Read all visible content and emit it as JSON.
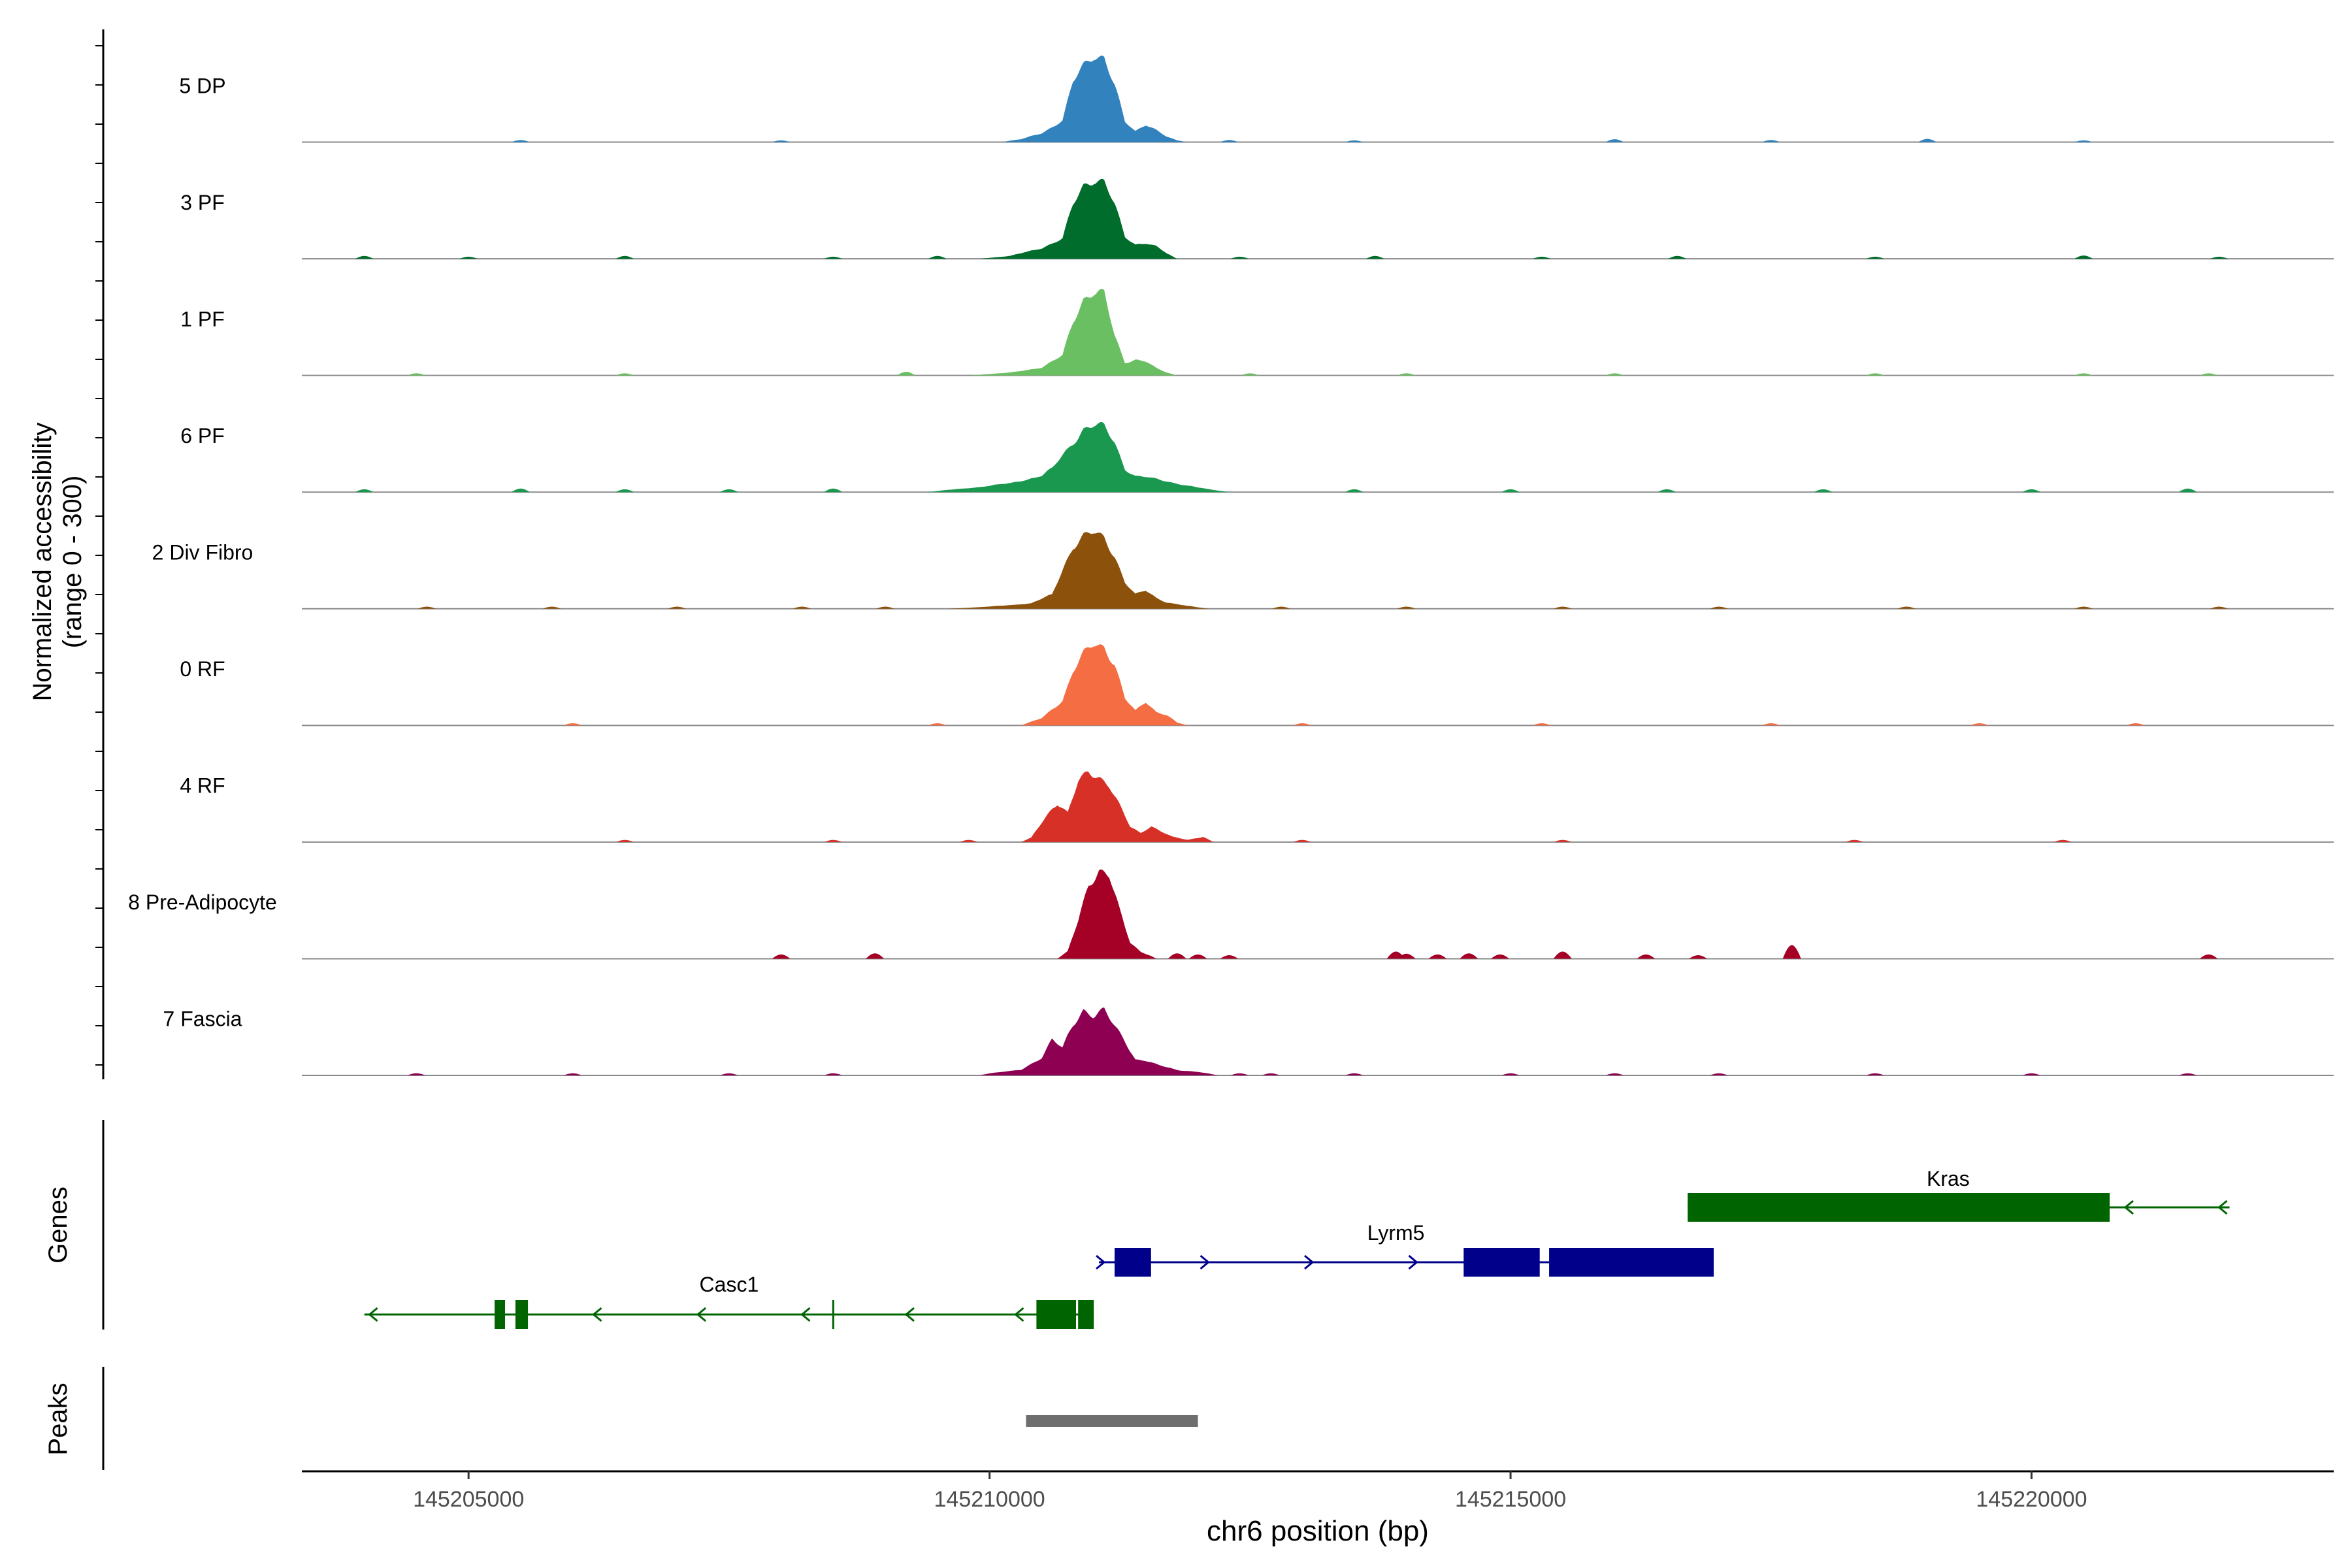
{
  "chart_data": {
    "type": "area",
    "title": "",
    "ylabel_line1": "Normalized accessibility",
    "ylabel_line2": "(range 0 - 300)",
    "xlabel": "chr6 position (bp)",
    "xlim": [
      145203400,
      145222900
    ],
    "ylim": [
      0,
      300
    ],
    "x_ticks": [
      145205000,
      145210000,
      145215000,
      145220000
    ],
    "x_tick_labels": [
      "145205000",
      "145210000",
      "145215000",
      "145220000"
    ],
    "series": [
      {
        "name": "5 DP",
        "color": "#3182BD",
        "points": [
          [
            145210100,
            0
          ],
          [
            145210300,
            8
          ],
          [
            145210500,
            25
          ],
          [
            145210700,
            60
          ],
          [
            145210800,
            165
          ],
          [
            145210900,
            210
          ],
          [
            145211000,
            245
          ],
          [
            145211100,
            240
          ],
          [
            145211200,
            160
          ],
          [
            145211300,
            55
          ],
          [
            145211400,
            30
          ],
          [
            145211500,
            50
          ],
          [
            145211600,
            35
          ],
          [
            145211700,
            15
          ],
          [
            145211800,
            5
          ],
          [
            145211900,
            0
          ]
        ],
        "noise": [
          [
            145205500,
            6
          ],
          [
            145208000,
            5
          ],
          [
            145212300,
            6
          ],
          [
            145213500,
            5
          ],
          [
            145216000,
            8
          ],
          [
            145217500,
            6
          ],
          [
            145219000,
            9
          ],
          [
            145220500,
            5
          ]
        ]
      },
      {
        "name": "3 PF",
        "color": "#006D2C",
        "points": [
          [
            145209900,
            0
          ],
          [
            145210200,
            8
          ],
          [
            145210500,
            30
          ],
          [
            145210700,
            55
          ],
          [
            145210800,
            150
          ],
          [
            145210900,
            205
          ],
          [
            145211000,
            225
          ],
          [
            145211100,
            215
          ],
          [
            145211200,
            150
          ],
          [
            145211300,
            60
          ],
          [
            145211400,
            40
          ],
          [
            145211500,
            45
          ],
          [
            145211600,
            35
          ],
          [
            145211700,
            15
          ],
          [
            145211800,
            0
          ]
        ],
        "noise": [
          [
            145204000,
            8
          ],
          [
            145205000,
            6
          ],
          [
            145206500,
            8
          ],
          [
            145208500,
            6
          ],
          [
            145209500,
            8
          ],
          [
            145212400,
            6
          ],
          [
            145213700,
            8
          ],
          [
            145215300,
            6
          ],
          [
            145216600,
            8
          ],
          [
            145218500,
            6
          ],
          [
            145220500,
            9
          ],
          [
            145221800,
            6
          ]
        ]
      },
      {
        "name": "1 PF",
        "color": "#6ABF62",
        "points": [
          [
            145209800,
            0
          ],
          [
            145210200,
            8
          ],
          [
            145210500,
            22
          ],
          [
            145210700,
            55
          ],
          [
            145210800,
            150
          ],
          [
            145210900,
            215
          ],
          [
            145211000,
            235
          ],
          [
            145211100,
            225
          ],
          [
            145211200,
            110
          ],
          [
            145211300,
            35
          ],
          [
            145211400,
            45
          ],
          [
            145211500,
            40
          ],
          [
            145211600,
            20
          ],
          [
            145211700,
            8
          ],
          [
            145211800,
            0
          ]
        ],
        "noise": [
          [
            145204500,
            6
          ],
          [
            145206500,
            6
          ],
          [
            145209200,
            10
          ],
          [
            145212500,
            6
          ],
          [
            145214000,
            6
          ],
          [
            145216000,
            6
          ],
          [
            145218500,
            6
          ],
          [
            145220500,
            6
          ],
          [
            145221700,
            6
          ]
        ]
      },
      {
        "name": "6 PF",
        "color": "#1A9850",
        "points": [
          [
            145209400,
            0
          ],
          [
            145209600,
            6
          ],
          [
            145209900,
            14
          ],
          [
            145210200,
            25
          ],
          [
            145210500,
            45
          ],
          [
            145210600,
            65
          ],
          [
            145210800,
            140
          ],
          [
            145210900,
            175
          ],
          [
            145211000,
            185
          ],
          [
            145211100,
            180
          ],
          [
            145211200,
            140
          ],
          [
            145211300,
            65
          ],
          [
            145211400,
            45
          ],
          [
            145211500,
            42
          ],
          [
            145211700,
            30
          ],
          [
            145211900,
            18
          ],
          [
            145212100,
            8
          ],
          [
            145212300,
            0
          ]
        ],
        "noise": [
          [
            145204000,
            8
          ],
          [
            145205500,
            10
          ],
          [
            145206500,
            8
          ],
          [
            145207500,
            8
          ],
          [
            145208500,
            10
          ],
          [
            145213500,
            8
          ],
          [
            145215000,
            8
          ],
          [
            145216500,
            8
          ],
          [
            145218000,
            8
          ],
          [
            145220000,
            8
          ],
          [
            145221500,
            10
          ]
        ]
      },
      {
        "name": "2 Div Fibro",
        "color": "#8C510A",
        "points": [
          [
            145209600,
            0
          ],
          [
            145210000,
            6
          ],
          [
            145210400,
            15
          ],
          [
            145210600,
            40
          ],
          [
            145210700,
            110
          ],
          [
            145210800,
            175
          ],
          [
            145210900,
            200
          ],
          [
            145211000,
            210
          ],
          [
            145211100,
            195
          ],
          [
            145211200,
            150
          ],
          [
            145211300,
            75
          ],
          [
            145211400,
            40
          ],
          [
            145211500,
            50
          ],
          [
            145211600,
            30
          ],
          [
            145211700,
            18
          ],
          [
            145211900,
            8
          ],
          [
            145212100,
            0
          ]
        ],
        "noise": [
          [
            145204600,
            6
          ],
          [
            145205800,
            6
          ],
          [
            145207000,
            6
          ],
          [
            145208200,
            6
          ],
          [
            145209000,
            6
          ],
          [
            145212800,
            6
          ],
          [
            145214000,
            6
          ],
          [
            145215500,
            6
          ],
          [
            145217000,
            6
          ],
          [
            145218800,
            6
          ],
          [
            145220500,
            6
          ],
          [
            145221800,
            6
          ]
        ]
      },
      {
        "name": "0 RF",
        "color": "#F46D43",
        "points": [
          [
            145210300,
            0
          ],
          [
            145210500,
            20
          ],
          [
            145210700,
            70
          ],
          [
            145210800,
            150
          ],
          [
            145210900,
            195
          ],
          [
            145211000,
            225
          ],
          [
            145211100,
            220
          ],
          [
            145211200,
            175
          ],
          [
            145211300,
            75
          ],
          [
            145211400,
            40
          ],
          [
            145211500,
            65
          ],
          [
            145211600,
            38
          ],
          [
            145211700,
            30
          ],
          [
            145211800,
            8
          ],
          [
            145211900,
            0
          ]
        ],
        "noise": [
          [
            145206000,
            6
          ],
          [
            145209500,
            6
          ],
          [
            145213000,
            6
          ],
          [
            145215300,
            6
          ],
          [
            145217500,
            6
          ],
          [
            145219500,
            6
          ],
          [
            145221000,
            6
          ]
        ]
      },
      {
        "name": "4 RF",
        "color": "#D73027",
        "points": [
          [
            145210300,
            0
          ],
          [
            145210400,
            12
          ],
          [
            145210500,
            55
          ],
          [
            145210600,
            95
          ],
          [
            145210650,
            110
          ],
          [
            145210750,
            80
          ],
          [
            145210850,
            165
          ],
          [
            145210950,
            195
          ],
          [
            145211050,
            185
          ],
          [
            145211150,
            160
          ],
          [
            145211250,
            100
          ],
          [
            145211350,
            42
          ],
          [
            145211450,
            25
          ],
          [
            145211550,
            45
          ],
          [
            145211650,
            30
          ],
          [
            145211750,
            15
          ],
          [
            145211900,
            6
          ],
          [
            145212050,
            15
          ],
          [
            145212150,
            0
          ]
        ],
        "noise": [
          [
            145206500,
            6
          ],
          [
            145208500,
            6
          ],
          [
            145209800,
            6
          ],
          [
            145213000,
            6
          ],
          [
            145215500,
            6
          ],
          [
            145218300,
            6
          ],
          [
            145220300,
            6
          ]
        ]
      },
      {
        "name": "8 Pre-Adipocyte",
        "color": "#A50026",
        "points": [
          [
            145210650,
            0
          ],
          [
            145210750,
            20
          ],
          [
            145210850,
            105
          ],
          [
            145210950,
            210
          ],
          [
            145211050,
            250
          ],
          [
            145211150,
            230
          ],
          [
            145211250,
            130
          ],
          [
            145211350,
            45
          ],
          [
            145211450,
            20
          ],
          [
            145211550,
            8
          ],
          [
            145211600,
            0
          ]
        ],
        "noise": [
          [
            145208000,
            12
          ],
          [
            145208900,
            15
          ],
          [
            145211800,
            15
          ],
          [
            145212000,
            12
          ],
          [
            145212300,
            10
          ],
          [
            145213900,
            20
          ],
          [
            145214000,
            14
          ],
          [
            145214300,
            12
          ],
          [
            145214600,
            15
          ],
          [
            145214900,
            12
          ],
          [
            145215500,
            20
          ],
          [
            145216300,
            12
          ],
          [
            145216800,
            10
          ],
          [
            145217700,
            38
          ],
          [
            145221700,
            12
          ]
        ]
      },
      {
        "name": "7 Fascia",
        "color": "#8E0152",
        "points": [
          [
            145209900,
            0
          ],
          [
            145210000,
            6
          ],
          [
            145210300,
            15
          ],
          [
            145210500,
            50
          ],
          [
            145210600,
            100
          ],
          [
            145210700,
            75
          ],
          [
            145210800,
            140
          ],
          [
            145210900,
            185
          ],
          [
            145211000,
            170
          ],
          [
            145211100,
            180
          ],
          [
            145211200,
            135
          ],
          [
            145211300,
            95
          ],
          [
            145211400,
            45
          ],
          [
            145211500,
            42
          ],
          [
            145211600,
            30
          ],
          [
            145211800,
            15
          ],
          [
            145212000,
            10
          ],
          [
            145212200,
            0
          ]
        ],
        "noise": [
          [
            145204500,
            6
          ],
          [
            145206000,
            6
          ],
          [
            145207500,
            6
          ],
          [
            145208500,
            6
          ],
          [
            145212400,
            6
          ],
          [
            145212700,
            6
          ],
          [
            145213500,
            6
          ],
          [
            145215000,
            6
          ],
          [
            145216000,
            6
          ],
          [
            145217000,
            6
          ],
          [
            145218500,
            6
          ],
          [
            145220000,
            6
          ],
          [
            145221500,
            6
          ]
        ]
      }
    ],
    "genes_track": {
      "label": "Genes",
      "genes": [
        {
          "name": "Kras",
          "strand": "-",
          "color": "#006400",
          "start": 145216700,
          "end": 145221900,
          "exons": [
            [
              145216700,
              145220750
            ]
          ],
          "arrows": [
            145220900,
            145221800
          ]
        },
        {
          "name": "Lyrm5",
          "strand": "+",
          "color": "#00008B",
          "start": 145211050,
          "end": 145216900,
          "exons": [
            [
              145211200,
              145211550
            ],
            [
              145214550,
              145215280
            ],
            [
              145215370,
              145216950
            ]
          ],
          "arrows": [
            145211100,
            145212100,
            145213100,
            145214100
          ]
        },
        {
          "name": "Casc1",
          "strand": "-",
          "color": "#006400",
          "start": 145204000,
          "end": 145211000,
          "exons": [
            [
              145205250,
              145205350
            ],
            [
              145205450,
              145205570
            ],
            [
              145210450,
              145210830
            ],
            [
              145210850,
              145211000
            ]
          ],
          "arrows": [
            145204050,
            145206200,
            145207200,
            145208200,
            145209200,
            145210250
          ],
          "marks": [
            145208500
          ]
        }
      ]
    },
    "peaks_track": {
      "label": "Peaks",
      "peaks": [
        [
          145210350,
          145212000
        ]
      ],
      "color": "#6E6E6E"
    }
  }
}
